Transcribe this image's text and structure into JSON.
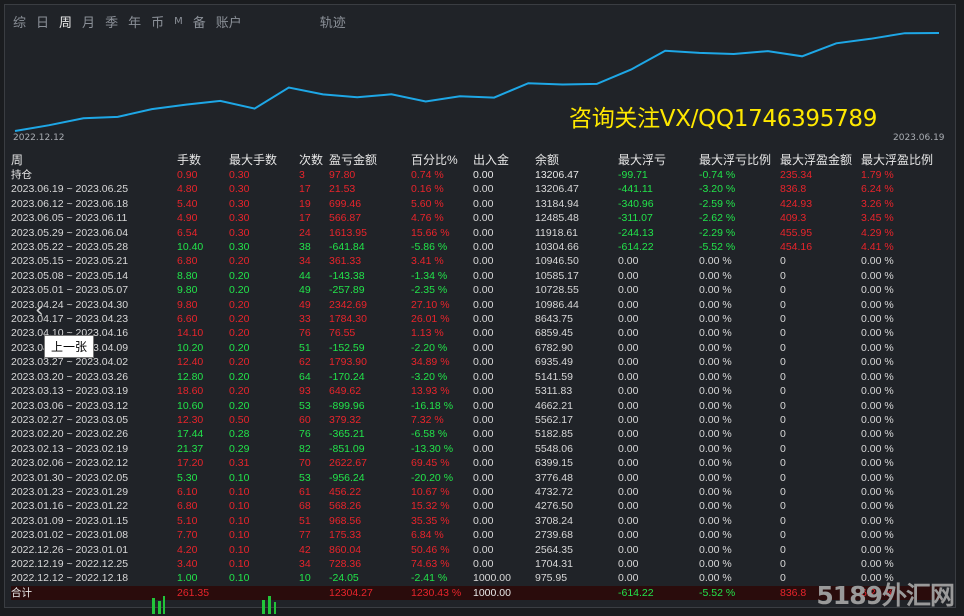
{
  "nav": {
    "tabs": [
      "综",
      "日",
      "周",
      "月",
      "季",
      "年",
      "币",
      "M",
      "备",
      "账户"
    ],
    "active": "周",
    "track_label": "轨迹"
  },
  "chart_meta": {
    "start_date": "2022.12.12",
    "end_date": "2023.06.19",
    "line_color": "#1ea7e6"
  },
  "chart_data": {
    "type": "line",
    "x": [
      "2022.12.12",
      "2022.12.19",
      "2022.12.26",
      "2023.01.02",
      "2023.01.09",
      "2023.01.16",
      "2023.01.23",
      "2023.01.30",
      "2023.02.06",
      "2023.02.13",
      "2023.02.20",
      "2023.02.27",
      "2023.03.06",
      "2023.03.13",
      "2023.03.20",
      "2023.03.27",
      "2023.04.03",
      "2023.04.10",
      "2023.04.17",
      "2023.04.24",
      "2023.05.01",
      "2023.05.08",
      "2023.05.15",
      "2023.05.22",
      "2023.05.29",
      "2023.06.05",
      "2023.06.12",
      "2023.06.19"
    ],
    "series": [
      {
        "values": [
          975.95,
          1704.31,
          2564.35,
          2739.68,
          3708.24,
          4276.5,
          4732.72,
          3776.48,
          6399.15,
          5548.06,
          5182.85,
          5562.17,
          4662.21,
          5311.83,
          5141.59,
          6935.49,
          6782.9,
          6859.45,
          8643.75,
          10986.44,
          10728.55,
          10585.17,
          10946.5,
          10304.66,
          11918.61,
          12485.48,
          13184.94,
          13206.47
        ]
      }
    ]
  },
  "watermark": "咨询关注VX/QQ1746395789",
  "table": {
    "headers": [
      "周",
      "手数",
      "最大手数",
      "次数",
      "盈亏金额",
      "百分比%",
      "出入金",
      "余额",
      "最大浮亏",
      "最大浮亏比例",
      "最大浮盈金额",
      "最大浮盈比例"
    ],
    "holding": {
      "label": "持仓",
      "lots": "0.90",
      "max_lots": "0.30",
      "count": "3",
      "pnl": "97.80",
      "pct": "0.74 %",
      "flow": "0.00",
      "balance": "13206.47",
      "max_dd": "-99.71",
      "max_dd_pct": "-0.74 %",
      "max_fp": "235.34",
      "max_fp_pct": "1.79 %"
    },
    "rows": [
      {
        "week": "2023.06.19 ~ 2023.06.25",
        "lots": "4.80",
        "max_lots": "0.30",
        "count": "17",
        "pnl": "21.53",
        "pct": "0.16 %",
        "flow": "0.00",
        "balance": "13206.47",
        "max_dd": "-441.11",
        "max_dd_pct": "-3.20 %",
        "max_fp": "836.8",
        "max_fp_pct": "6.24 %"
      },
      {
        "week": "2023.06.12 ~ 2023.06.18",
        "lots": "5.40",
        "max_lots": "0.30",
        "count": "19",
        "pnl": "699.46",
        "pct": "5.60 %",
        "flow": "0.00",
        "balance": "13184.94",
        "max_dd": "-340.96",
        "max_dd_pct": "-2.59 %",
        "max_fp": "424.93",
        "max_fp_pct": "3.26 %"
      },
      {
        "week": "2023.06.05 ~ 2023.06.11",
        "lots": "4.90",
        "max_lots": "0.30",
        "count": "17",
        "pnl": "566.87",
        "pct": "4.76 %",
        "flow": "0.00",
        "balance": "12485.48",
        "max_dd": "-311.07",
        "max_dd_pct": "-2.62 %",
        "max_fp": "409.3",
        "max_fp_pct": "3.45 %"
      },
      {
        "week": "2023.05.29 ~ 2023.06.04",
        "lots": "6.54",
        "max_lots": "0.30",
        "count": "24",
        "pnl": "1613.95",
        "pct": "15.66 %",
        "flow": "0.00",
        "balance": "11918.61",
        "max_dd": "-244.13",
        "max_dd_pct": "-2.29 %",
        "max_fp": "455.95",
        "max_fp_pct": "4.29 %"
      },
      {
        "week": "2023.05.22 ~ 2023.05.28",
        "lots": "10.40",
        "max_lots": "0.30",
        "count": "38",
        "pnl": "-641.84",
        "pct": "-5.86 %",
        "flow": "0.00",
        "balance": "10304.66",
        "max_dd": "-614.22",
        "max_dd_pct": "-5.52 %",
        "max_fp": "454.16",
        "max_fp_pct": "4.41 %"
      },
      {
        "week": "2023.05.15 ~ 2023.05.21",
        "lots": "6.80",
        "max_lots": "0.20",
        "count": "34",
        "pnl": "361.33",
        "pct": "3.41 %",
        "flow": "0.00",
        "balance": "10946.50",
        "max_dd": "0.00",
        "max_dd_pct": "0.00 %",
        "max_fp": "0",
        "max_fp_pct": "0.00 %"
      },
      {
        "week": "2023.05.08 ~ 2023.05.14",
        "lots": "8.80",
        "max_lots": "0.20",
        "count": "44",
        "pnl": "-143.38",
        "pct": "-1.34 %",
        "flow": "0.00",
        "balance": "10585.17",
        "max_dd": "0.00",
        "max_dd_pct": "0.00 %",
        "max_fp": "0",
        "max_fp_pct": "0.00 %"
      },
      {
        "week": "2023.05.01 ~ 2023.05.07",
        "lots": "9.80",
        "max_lots": "0.20",
        "count": "49",
        "pnl": "-257.89",
        "pct": "-2.35 %",
        "flow": "0.00",
        "balance": "10728.55",
        "max_dd": "0.00",
        "max_dd_pct": "0.00 %",
        "max_fp": "0",
        "max_fp_pct": "0.00 %"
      },
      {
        "week": "2023.04.24 ~ 2023.04.30",
        "lots": "9.80",
        "max_lots": "0.20",
        "count": "49",
        "pnl": "2342.69",
        "pct": "27.10 %",
        "flow": "0.00",
        "balance": "10986.44",
        "max_dd": "0.00",
        "max_dd_pct": "0.00 %",
        "max_fp": "0",
        "max_fp_pct": "0.00 %"
      },
      {
        "week": "2023.04.17 ~ 2023.04.23",
        "lots": "6.60",
        "max_lots": "0.20",
        "count": "33",
        "pnl": "1784.30",
        "pct": "26.01 %",
        "flow": "0.00",
        "balance": "8643.75",
        "max_dd": "0.00",
        "max_dd_pct": "0.00 %",
        "max_fp": "0",
        "max_fp_pct": "0.00 %"
      },
      {
        "week": "2023.04.10 ~ 2023.04.16",
        "lots": "14.10",
        "max_lots": "0.20",
        "count": "76",
        "pnl": "76.55",
        "pct": "1.13 %",
        "flow": "0.00",
        "balance": "6859.45",
        "max_dd": "0.00",
        "max_dd_pct": "0.00 %",
        "max_fp": "0",
        "max_fp_pct": "0.00 %"
      },
      {
        "week": "2023.04.03 ~ 2023.04.09",
        "lots": "10.20",
        "max_lots": "0.20",
        "count": "51",
        "pnl": "-152.59",
        "pct": "-2.20 %",
        "flow": "0.00",
        "balance": "6782.90",
        "max_dd": "0.00",
        "max_dd_pct": "0.00 %",
        "max_fp": "0",
        "max_fp_pct": "0.00 %"
      },
      {
        "week": "2023.03.27 ~ 2023.04.02",
        "lots": "12.40",
        "max_lots": "0.20",
        "count": "62",
        "pnl": "1793.90",
        "pct": "34.89 %",
        "flow": "0.00",
        "balance": "6935.49",
        "max_dd": "0.00",
        "max_dd_pct": "0.00 %",
        "max_fp": "0",
        "max_fp_pct": "0.00 %"
      },
      {
        "week": "2023.03.20 ~ 2023.03.26",
        "lots": "12.80",
        "max_lots": "0.20",
        "count": "64",
        "pnl": "-170.24",
        "pct": "-3.20 %",
        "flow": "0.00",
        "balance": "5141.59",
        "max_dd": "0.00",
        "max_dd_pct": "0.00 %",
        "max_fp": "0",
        "max_fp_pct": "0.00 %"
      },
      {
        "week": "2023.03.13 ~ 2023.03.19",
        "lots": "18.60",
        "max_lots": "0.20",
        "count": "93",
        "pnl": "649.62",
        "pct": "13.93 %",
        "flow": "0.00",
        "balance": "5311.83",
        "max_dd": "0.00",
        "max_dd_pct": "0.00 %",
        "max_fp": "0",
        "max_fp_pct": "0.00 %"
      },
      {
        "week": "2023.03.06 ~ 2023.03.12",
        "lots": "10.60",
        "max_lots": "0.20",
        "count": "53",
        "pnl": "-899.96",
        "pct": "-16.18 %",
        "flow": "0.00",
        "balance": "4662.21",
        "max_dd": "0.00",
        "max_dd_pct": "0.00 %",
        "max_fp": "0",
        "max_fp_pct": "0.00 %"
      },
      {
        "week": "2023.02.27 ~ 2023.03.05",
        "lots": "12.30",
        "max_lots": "0.50",
        "count": "60",
        "pnl": "379.32",
        "pct": "7.32 %",
        "flow": "0.00",
        "balance": "5562.17",
        "max_dd": "0.00",
        "max_dd_pct": "0.00 %",
        "max_fp": "0",
        "max_fp_pct": "0.00 %"
      },
      {
        "week": "2023.02.20 ~ 2023.02.26",
        "lots": "17.44",
        "max_lots": "0.28",
        "count": "76",
        "pnl": "-365.21",
        "pct": "-6.58 %",
        "flow": "0.00",
        "balance": "5182.85",
        "max_dd": "0.00",
        "max_dd_pct": "0.00 %",
        "max_fp": "0",
        "max_fp_pct": "0.00 %"
      },
      {
        "week": "2023.02.13 ~ 2023.02.19",
        "lots": "21.37",
        "max_lots": "0.29",
        "count": "82",
        "pnl": "-851.09",
        "pct": "-13.30 %",
        "flow": "0.00",
        "balance": "5548.06",
        "max_dd": "0.00",
        "max_dd_pct": "0.00 %",
        "max_fp": "0",
        "max_fp_pct": "0.00 %"
      },
      {
        "week": "2023.02.06 ~ 2023.02.12",
        "lots": "17.20",
        "max_lots": "0.31",
        "count": "70",
        "pnl": "2622.67",
        "pct": "69.45 %",
        "flow": "0.00",
        "balance": "6399.15",
        "max_dd": "0.00",
        "max_dd_pct": "0.00 %",
        "max_fp": "0",
        "max_fp_pct": "0.00 %"
      },
      {
        "week": "2023.01.30 ~ 2023.02.05",
        "lots": "5.30",
        "max_lots": "0.10",
        "count": "53",
        "pnl": "-956.24",
        "pct": "-20.20 %",
        "flow": "0.00",
        "balance": "3776.48",
        "max_dd": "0.00",
        "max_dd_pct": "0.00 %",
        "max_fp": "0",
        "max_fp_pct": "0.00 %"
      },
      {
        "week": "2023.01.23 ~ 2023.01.29",
        "lots": "6.10",
        "max_lots": "0.10",
        "count": "61",
        "pnl": "456.22",
        "pct": "10.67 %",
        "flow": "0.00",
        "balance": "4732.72",
        "max_dd": "0.00",
        "max_dd_pct": "0.00 %",
        "max_fp": "0",
        "max_fp_pct": "0.00 %"
      },
      {
        "week": "2023.01.16 ~ 2023.01.22",
        "lots": "6.80",
        "max_lots": "0.10",
        "count": "68",
        "pnl": "568.26",
        "pct": "15.32 %",
        "flow": "0.00",
        "balance": "4276.50",
        "max_dd": "0.00",
        "max_dd_pct": "0.00 %",
        "max_fp": "0",
        "max_fp_pct": "0.00 %"
      },
      {
        "week": "2023.01.09 ~ 2023.01.15",
        "lots": "5.10",
        "max_lots": "0.10",
        "count": "51",
        "pnl": "968.56",
        "pct": "35.35 %",
        "flow": "0.00",
        "balance": "3708.24",
        "max_dd": "0.00",
        "max_dd_pct": "0.00 %",
        "max_fp": "0",
        "max_fp_pct": "0.00 %"
      },
      {
        "week": "2023.01.02 ~ 2023.01.08",
        "lots": "7.70",
        "max_lots": "0.10",
        "count": "77",
        "pnl": "175.33",
        "pct": "6.84 %",
        "flow": "0.00",
        "balance": "2739.68",
        "max_dd": "0.00",
        "max_dd_pct": "0.00 %",
        "max_fp": "0",
        "max_fp_pct": "0.00 %"
      },
      {
        "week": "2022.12.26 ~ 2023.01.01",
        "lots": "4.20",
        "max_lots": "0.10",
        "count": "42",
        "pnl": "860.04",
        "pct": "50.46 %",
        "flow": "0.00",
        "balance": "2564.35",
        "max_dd": "0.00",
        "max_dd_pct": "0.00 %",
        "max_fp": "0",
        "max_fp_pct": "0.00 %"
      },
      {
        "week": "2022.12.19 ~ 2022.12.25",
        "lots": "3.40",
        "max_lots": "0.10",
        "count": "34",
        "pnl": "728.36",
        "pct": "74.63 %",
        "flow": "0.00",
        "balance": "1704.31",
        "max_dd": "0.00",
        "max_dd_pct": "0.00 %",
        "max_fp": "0",
        "max_fp_pct": "0.00 %"
      },
      {
        "week": "2022.12.12 ~ 2022.12.18",
        "lots": "1.00",
        "max_lots": "0.10",
        "count": "10",
        "pnl": "-24.05",
        "pct": "-2.41 %",
        "flow": "1000.00",
        "balance": "975.95",
        "max_dd": "0.00",
        "max_dd_pct": "0.00 %",
        "max_fp": "0",
        "max_fp_pct": "0.00 %"
      }
    ],
    "total": {
      "label": "合计",
      "lots": "261.35",
      "max_lots": "",
      "count": "",
      "pnl": "12304.27",
      "pct": "1230.43 %",
      "flow": "1000.00",
      "balance": "",
      "max_dd": "-614.22",
      "max_dd_pct": "-5.52 %",
      "max_fp": "836.8",
      "max_fp_pct": "6.24 %"
    }
  },
  "tooltip": "上一张",
  "prev_arrow_glyph": "‹",
  "site_logo": "5189外汇网"
}
